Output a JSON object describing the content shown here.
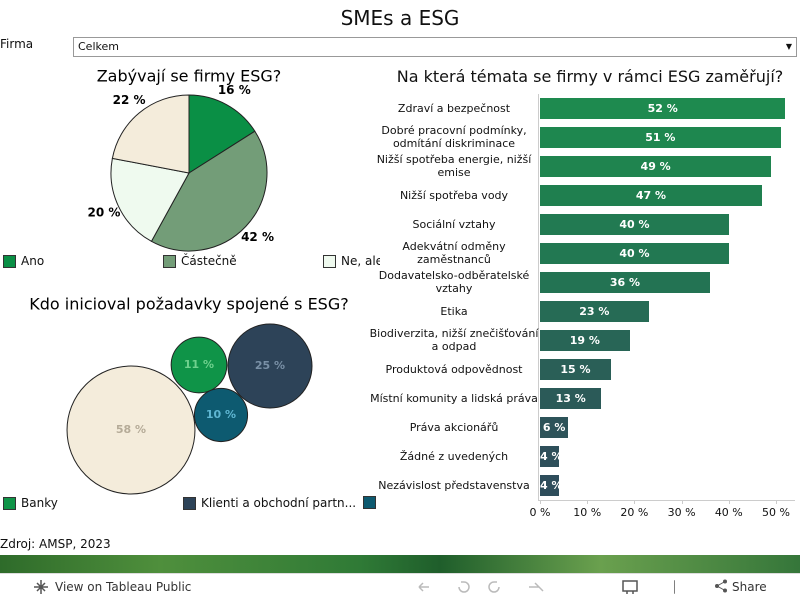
{
  "header": {
    "title": "SMEs a ESG"
  },
  "filter": {
    "label": "Firma",
    "value": "Celkem"
  },
  "chart_data": [
    {
      "type": "pie",
      "title": "Zabývají se firmy ESG?",
      "categories": [
        "Ano",
        "Částečně",
        "Ne, ale",
        null
      ],
      "values": [
        16,
        42,
        20,
        22
      ],
      "value_labels": [
        "16 %",
        "42 %",
        "20 %",
        "22 %"
      ],
      "colors": [
        "#0a8f45",
        "#739d78",
        "#effaef",
        "#f4ecdb"
      ]
    },
    {
      "type": "bubble",
      "title": "Kdo inicioval požadavky spojené s ESG?",
      "categories": [
        "Banky",
        "Klienti a obchodní partn...",
        null,
        null
      ],
      "values": [
        11,
        25,
        10,
        58
      ],
      "value_labels": [
        "11 %",
        "25 %",
        "10 %",
        "58 %"
      ],
      "colors": [
        "#0f9448",
        "#2d4358",
        "#0d5a70",
        "#f4ecdb"
      ],
      "label_colors": [
        "#6fd18e",
        "#7990a6",
        "#5fb7d3",
        "#b5ab98"
      ]
    },
    {
      "type": "bar",
      "orientation": "horizontal",
      "title": "Na která témata se firmy v rámci ESG zaměřují?",
      "categories": [
        "Zdraví a bezpečnost",
        "Dobré pracovní podmínky, odmítání diskriminace",
        "Nižší spotřeba energie, nižší emise",
        "Nižší spotřeba vody",
        "Sociální vztahy",
        "Adekvátní odměny zaměstnanců",
        "Dodavatelsko-odběratelské vztahy",
        "Etika",
        "Biodiverzita, nižší znečišťování a odpad",
        "Produktová odpovědnost",
        "Místní komunity a lidská práva",
        "Práva akcionářů",
        "Žádné z uvedených",
        "Nezávislost představenstva"
      ],
      "values": [
        52,
        51,
        49,
        47,
        40,
        40,
        36,
        23,
        19,
        15,
        13,
        6,
        4,
        4
      ],
      "value_labels": [
        "52 %",
        "51 %",
        "49 %",
        "47 %",
        "40 %",
        "40 %",
        "36 %",
        "23 %",
        "19 %",
        "15 %",
        "13 %",
        "6 %",
        "4 %",
        "4 %"
      ],
      "colors": [
        "#1e8a4f",
        "#1e874f",
        "#1f844f",
        "#1f7f4f",
        "#227a52",
        "#227852",
        "#237353",
        "#266b55",
        "#286556",
        "#2a5f57",
        "#2b5a58",
        "#2d5359",
        "#2e4f5a",
        "#2e4d5b"
      ],
      "xlim": [
        0,
        54.5
      ],
      "xticks": [
        {
          "value": 0,
          "label": "0 %"
        },
        {
          "value": 10,
          "label": "10 %"
        },
        {
          "value": 20,
          "label": "20 %"
        },
        {
          "value": 30,
          "label": "30 %"
        },
        {
          "value": 40,
          "label": "40 %"
        },
        {
          "value": 50,
          "label": "50 %"
        }
      ]
    }
  ],
  "footer": {
    "source": "Zdroj: AMSP, 2023"
  },
  "toolbar": {
    "view": "View on Tableau Public",
    "share": "Share"
  }
}
